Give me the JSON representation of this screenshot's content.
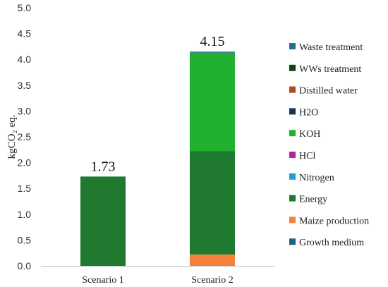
{
  "chart_data": {
    "type": "bar",
    "stacked": true,
    "categories": [
      "Scenario 1",
      "Scenario 2"
    ],
    "ylabel": "kgCO₂ eq.",
    "ylim": [
      0,
      5.0
    ],
    "yticks": [
      "0.0",
      "0.5",
      "1.0",
      "1.5",
      "2.0",
      "2.5",
      "3.0",
      "3.5",
      "4.0",
      "4.5",
      "5.0"
    ],
    "totals": [
      "1.73",
      "4.15"
    ],
    "grid": false,
    "legend_position": "right",
    "series": [
      {
        "name": "Growth medium",
        "color": "#1f5f8b",
        "values": [
          0.0,
          0.0
        ]
      },
      {
        "name": "Maize production",
        "color": "#f4813b",
        "values": [
          0.0,
          0.22
        ]
      },
      {
        "name": "Energy",
        "color": "#1f7a2f",
        "values": [
          1.73,
          2.0
        ]
      },
      {
        "name": "Nitrogen",
        "color": "#1ba3d4",
        "values": [
          0.0,
          0.0
        ]
      },
      {
        "name": "HCl",
        "color": "#b0279c",
        "values": [
          0.0,
          0.0
        ]
      },
      {
        "name": "KOH",
        "color": "#22b02f",
        "values": [
          0.0,
          1.91
        ]
      },
      {
        "name": "H2O",
        "color": "#15324f",
        "values": [
          0.0,
          0.0
        ]
      },
      {
        "name": "Distilled water",
        "color": "#b5461f",
        "values": [
          0.0,
          0.0
        ]
      },
      {
        "name": "WWs treatment",
        "color": "#0e4416",
        "values": [
          0.0,
          0.0
        ]
      },
      {
        "name": "Waste treatment",
        "color": "#1e6f91",
        "values": [
          0.0,
          0.02
        ]
      }
    ]
  }
}
